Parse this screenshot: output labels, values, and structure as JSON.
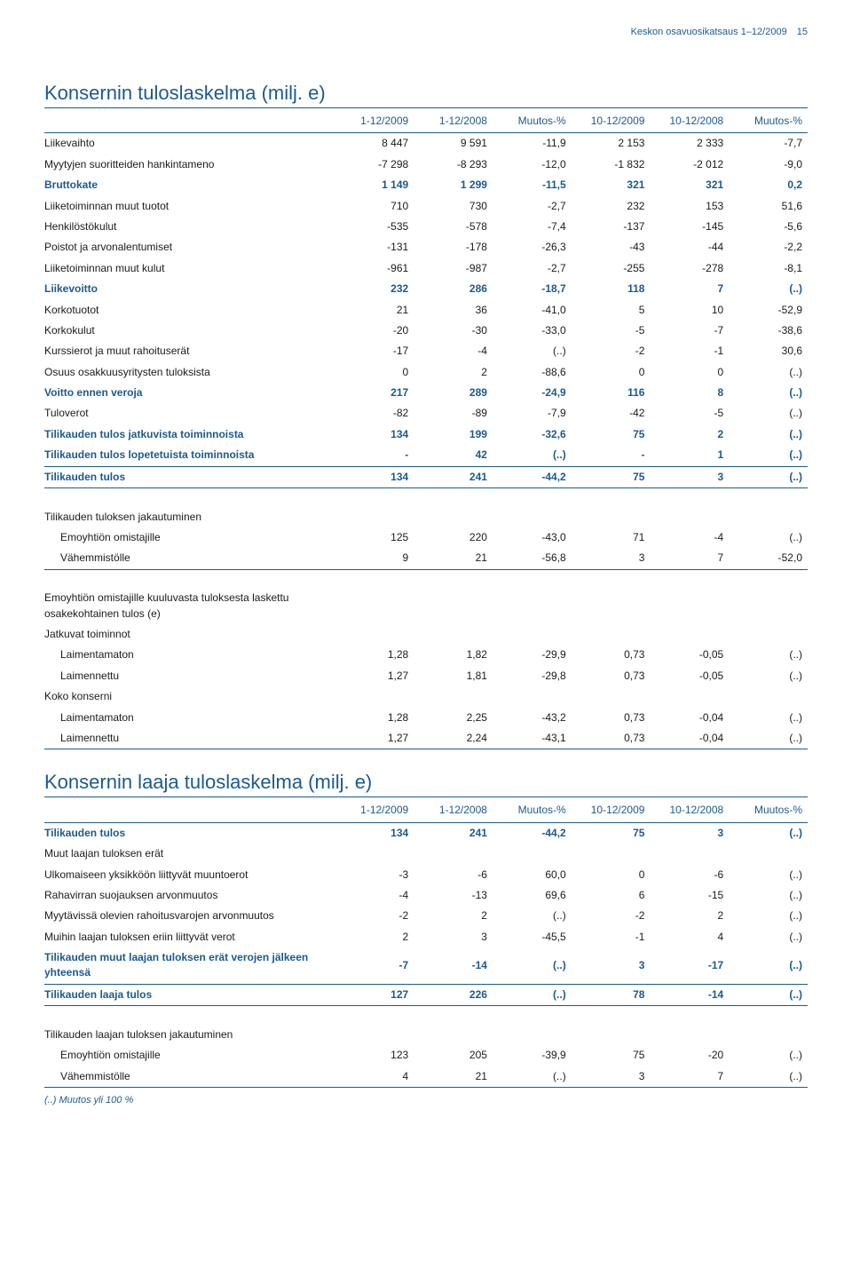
{
  "colors": {
    "brand": "#1b5a8f",
    "text": "#1a1a1a",
    "bg": "#ffffff"
  },
  "header": {
    "text": "Keskon osavuosikatsaus 1–12/2009",
    "page": "15"
  },
  "table1": {
    "title": "Konsernin tuloslaskelma (milj. e)",
    "columns": [
      "",
      "1-12/2009",
      "1-12/2008",
      "Muutos-%",
      "10-12/2009",
      "10-12/2008",
      "Muutos-%"
    ],
    "rows": [
      {
        "cells": [
          "Liikevaihto",
          "8 447",
          "9 591",
          "-11,9",
          "2 153",
          "2 333",
          "-7,7"
        ]
      },
      {
        "cells": [
          "Myytyjen suoritteiden hankintameno",
          "-7 298",
          "-8 293",
          "-12,0",
          "-1 832",
          "-2 012",
          "-9,0"
        ]
      },
      {
        "cells": [
          "Bruttokate",
          "1 149",
          "1 299",
          "-11,5",
          "321",
          "321",
          "0,2"
        ],
        "bold": true,
        "blue": true
      },
      {
        "cells": [
          "Liiketoiminnan muut tuotot",
          "710",
          "730",
          "-2,7",
          "232",
          "153",
          "51,6"
        ]
      },
      {
        "cells": [
          "Henkilöstökulut",
          "-535",
          "-578",
          "-7,4",
          "-137",
          "-145",
          "-5,6"
        ]
      },
      {
        "cells": [
          "Poistot ja arvonalentumiset",
          "-131",
          "-178",
          "-26,3",
          "-43",
          "-44",
          "-2,2"
        ]
      },
      {
        "cells": [
          "Liiketoiminnan muut kulut",
          "-961",
          "-987",
          "-2,7",
          "-255",
          "-278",
          "-8,1"
        ]
      },
      {
        "cells": [
          "Liikevoitto",
          "232",
          "286",
          "-18,7",
          "118",
          "7",
          "(..)"
        ],
        "bold": true,
        "blue": true
      },
      {
        "cells": [
          "Korkotuotot",
          "21",
          "36",
          "-41,0",
          "5",
          "10",
          "-52,9"
        ]
      },
      {
        "cells": [
          "Korkokulut",
          "-20",
          "-30",
          "-33,0",
          "-5",
          "-7",
          "-38,6"
        ]
      },
      {
        "cells": [
          "Kurssierot ja muut rahoituserät",
          "-17",
          "-4",
          "(..)",
          "-2",
          "-1",
          "30,6"
        ]
      },
      {
        "cells": [
          "Osuus osakkuusyritysten tuloksista",
          "0",
          "2",
          "-88,6",
          "0",
          "0",
          "(..)"
        ]
      },
      {
        "cells": [
          "Voitto ennen veroja",
          "217",
          "289",
          "-24,9",
          "116",
          "8",
          "(..)"
        ],
        "bold": true,
        "blue": true
      },
      {
        "cells": [
          "Tuloverot",
          "-82",
          "-89",
          "-7,9",
          "-42",
          "-5",
          "(..)"
        ]
      },
      {
        "cells": [
          "Tilikauden tulos jatkuvista toiminnoista",
          "134",
          "199",
          "-32,6",
          "75",
          "2",
          "(..)"
        ],
        "bold": true,
        "blue": true
      },
      {
        "cells": [
          "Tilikauden tulos lopetetuista toiminnoista",
          "-",
          "42",
          "(..)",
          "-",
          "1",
          "(..)"
        ],
        "bold": true,
        "blue": true,
        "rule": true
      },
      {
        "cells": [
          "Tilikauden tulos",
          "134",
          "241",
          "-44,2",
          "75",
          "3",
          "(..)"
        ],
        "bold": true,
        "blue": true,
        "rule": true
      },
      {
        "spacer": true
      },
      {
        "cells": [
          "Tilikauden tuloksen jakautuminen",
          "",
          "",
          "",
          "",
          "",
          ""
        ],
        "sectionhead": true
      },
      {
        "cells": [
          "Emoyhtiön omistajille",
          "125",
          "220",
          "-43,0",
          "71",
          "-4",
          "(..)"
        ],
        "indent": true
      },
      {
        "cells": [
          "Vähemmistölle",
          "9",
          "21",
          "-56,8",
          "3",
          "7",
          "-52,0"
        ],
        "indent": true,
        "rule": true
      },
      {
        "spacer": true
      },
      {
        "cells": [
          "Emoyhtiön omistajille kuuluvasta tuloksesta laskettu osakekohtainen tulos (e)",
          "",
          "",
          "",
          "",
          "",
          ""
        ],
        "bold": true,
        "sectionhead": true
      },
      {
        "cells": [
          "Jatkuvat toiminnot",
          "",
          "",
          "",
          "",
          "",
          ""
        ]
      },
      {
        "cells": [
          "Laimentamaton",
          "1,28",
          "1,82",
          "-29,9",
          "0,73",
          "-0,05",
          "(..)"
        ],
        "indent": true
      },
      {
        "cells": [
          "Laimennettu",
          "1,27",
          "1,81",
          "-29,8",
          "0,73",
          "-0,05",
          "(..)"
        ],
        "indent": true
      },
      {
        "cells": [
          "Koko konserni",
          "",
          "",
          "",
          "",
          "",
          ""
        ]
      },
      {
        "cells": [
          "Laimentamaton",
          "1,28",
          "2,25",
          "-43,2",
          "0,73",
          "-0,04",
          "(..)"
        ],
        "indent": true
      },
      {
        "cells": [
          "Laimennettu",
          "1,27",
          "2,24",
          "-43,1",
          "0,73",
          "-0,04",
          "(..)"
        ],
        "indent": true,
        "rule": true
      }
    ]
  },
  "table2": {
    "title": "Konsernin laaja tuloslaskelma (milj. e)",
    "columns": [
      "",
      "1-12/2009",
      "1-12/2008",
      "Muutos-%",
      "10-12/2009",
      "10-12/2008",
      "Muutos-%"
    ],
    "rows": [
      {
        "cells": [
          "Tilikauden tulos",
          "134",
          "241",
          "-44,2",
          "75",
          "3",
          "(..)"
        ],
        "bold": true,
        "blue": true
      },
      {
        "cells": [
          "Muut laajan tuloksen erät",
          "",
          "",
          "",
          "",
          "",
          ""
        ]
      },
      {
        "cells": [
          "Ulkomaiseen yksikköön liittyvät muuntoerot",
          "-3",
          "-6",
          "60,0",
          "0",
          "-6",
          "(..)"
        ]
      },
      {
        "cells": [
          "Rahavirran suojauksen arvonmuutos",
          "-4",
          "-13",
          "69,6",
          "6",
          "-15",
          "(..)"
        ]
      },
      {
        "cells": [
          "Myytävissä olevien rahoitusvarojen arvonmuutos",
          "-2",
          "2",
          "(..)",
          "-2",
          "2",
          "(..)"
        ]
      },
      {
        "cells": [
          "Muihin laajan tuloksen eriin liittyvät verot",
          "2",
          "3",
          "-45,5",
          "-1",
          "4",
          "(..)"
        ]
      },
      {
        "cells": [
          "Tilikauden muut laajan tuloksen erät verojen jälkeen yhteensä",
          "-7",
          "-14",
          "(..)",
          "3",
          "-17",
          "(..)"
        ],
        "bold": true,
        "blue": true,
        "rule": true
      },
      {
        "cells": [
          "Tilikauden laaja tulos",
          "127",
          "226",
          "(..)",
          "78",
          "-14",
          "(..)"
        ],
        "bold": true,
        "blue": true,
        "rule": true
      },
      {
        "spacer": true
      },
      {
        "cells": [
          "Tilikauden laajan tuloksen jakautuminen",
          "",
          "",
          "",
          "",
          "",
          ""
        ],
        "sectionhead": true
      },
      {
        "cells": [
          "Emoyhtiön omistajille",
          "123",
          "205",
          "-39,9",
          "75",
          "-20",
          "(..)"
        ],
        "indent": true
      },
      {
        "cells": [
          "Vähemmistölle",
          "4",
          "21",
          "(..)",
          "3",
          "7",
          "(..)"
        ],
        "indent": true,
        "rule": true
      }
    ]
  },
  "footnote": "(..) Muutos yli 100 %"
}
